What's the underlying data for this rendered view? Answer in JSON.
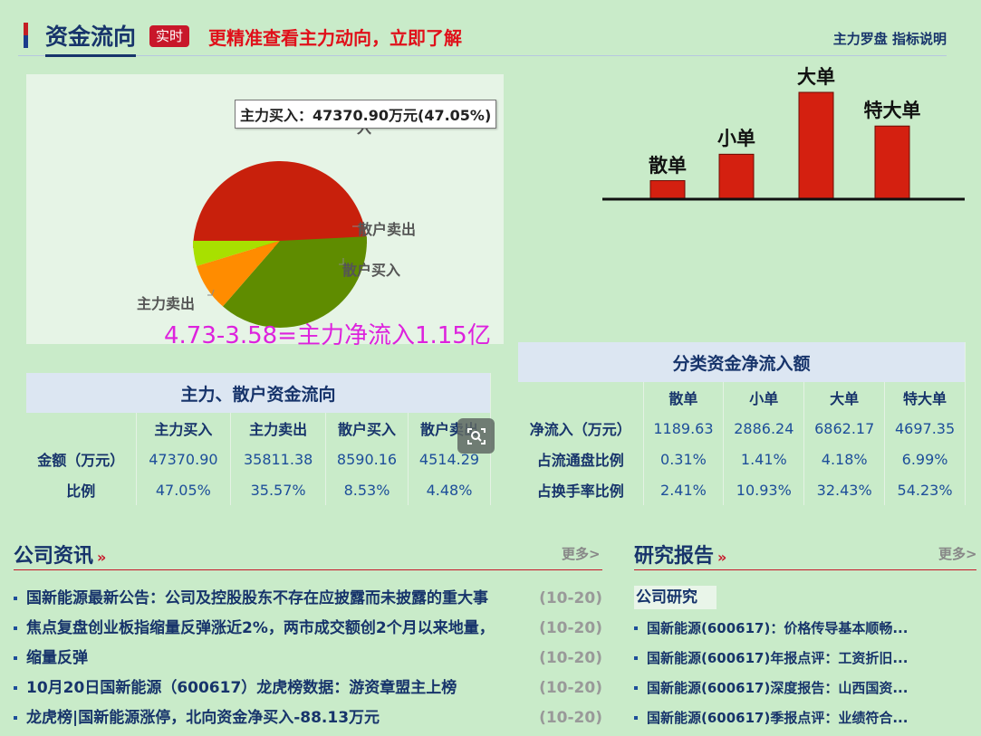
{
  "header": {
    "title": "资金流向",
    "badge": "实时",
    "promo": "更精准查看主力动向，立即了解",
    "link_compass": "主力罗盘",
    "link_guide": "指标说明"
  },
  "pie": {
    "labels": {
      "main_sell": "主力卖出",
      "retail_buy": "散户买入",
      "retail_sell": "散户卖出",
      "main_buy_partial": "入"
    },
    "tooltip": "主力买入：47370.90万元(47.05%)",
    "colors": {
      "main_buy": "#c8200c",
      "main_sell": "#5f8c00",
      "retail_buy": "#ff8c00",
      "retail_sell": "#a8e000"
    }
  },
  "annotation": "4.73-3.58=主力净流入1.15亿",
  "chart_data": {
    "type": "pie",
    "title": "",
    "slices": [
      {
        "name": "主力买入",
        "value": 47.05
      },
      {
        "name": "主力卖出",
        "value": 35.57
      },
      {
        "name": "散户买入",
        "value": 8.53
      },
      {
        "name": "散户卖出",
        "value": 4.48
      }
    ]
  },
  "bars": {
    "items": [
      {
        "label": "散单",
        "value": 1189.63
      },
      {
        "label": "小单",
        "value": 2886.24
      },
      {
        "label": "大单",
        "value": 6862.17
      },
      {
        "label": "特大单",
        "value": 4697.35
      }
    ],
    "color": "#d42010"
  },
  "table1": {
    "caption": "主力、散户资金流向",
    "headers": [
      "主力买入",
      "主力卖出",
      "散户买入",
      "散户卖出"
    ],
    "rows": [
      {
        "label": "金额（万元）",
        "values": [
          "47370.90",
          "35811.38",
          "8590.16",
          "4514.29"
        ]
      },
      {
        "label": "比例",
        "values": [
          "47.05%",
          "35.57%",
          "8.53%",
          "4.48%"
        ]
      }
    ]
  },
  "table2": {
    "caption": "分类资金净流入额",
    "headers": [
      "散单",
      "小单",
      "大单",
      "特大单"
    ],
    "rows": [
      {
        "label": "净流入（万元）",
        "values": [
          "1189.63",
          "2886.24",
          "6862.17",
          "4697.35"
        ]
      },
      {
        "label": "占流通盘比例",
        "values": [
          "0.31%",
          "1.41%",
          "4.18%",
          "6.99%"
        ]
      },
      {
        "label": "占换手率比例",
        "values": [
          "2.41%",
          "10.93%",
          "32.43%",
          "54.23%"
        ]
      }
    ]
  },
  "news": {
    "title": "公司资讯",
    "more": "更多>",
    "items": [
      {
        "text": "国新能源最新公告：公司及控股股东不存在应披露而未披露的重大事",
        "date": "(10-20)"
      },
      {
        "text": "焦点复盘创业板指缩量反弹涨近2%，两市成交额创2个月以来地量，",
        "date": "(10-20)"
      },
      {
        "text": "缩量反弹",
        "date": "(10-20)"
      },
      {
        "text": "10月20日国新能源（600617）龙虎榜数据：游资章盟主上榜",
        "date": "(10-20)"
      },
      {
        "text": "龙虎榜|国新能源涨停，北向资金净买入-88.13万元",
        "date": "(10-20)"
      }
    ]
  },
  "research": {
    "title": "研究报告",
    "more": "更多>",
    "tab": "公司研究",
    "items": [
      {
        "text": "国新能源(600617)：价格传导基本顺畅..."
      },
      {
        "text": "国新能源(600617)年报点评：工资折旧..."
      },
      {
        "text": "国新能源(600617)深度报告：山西国资..."
      },
      {
        "text": "国新能源(600617)季报点评：业绩符合..."
      }
    ]
  }
}
